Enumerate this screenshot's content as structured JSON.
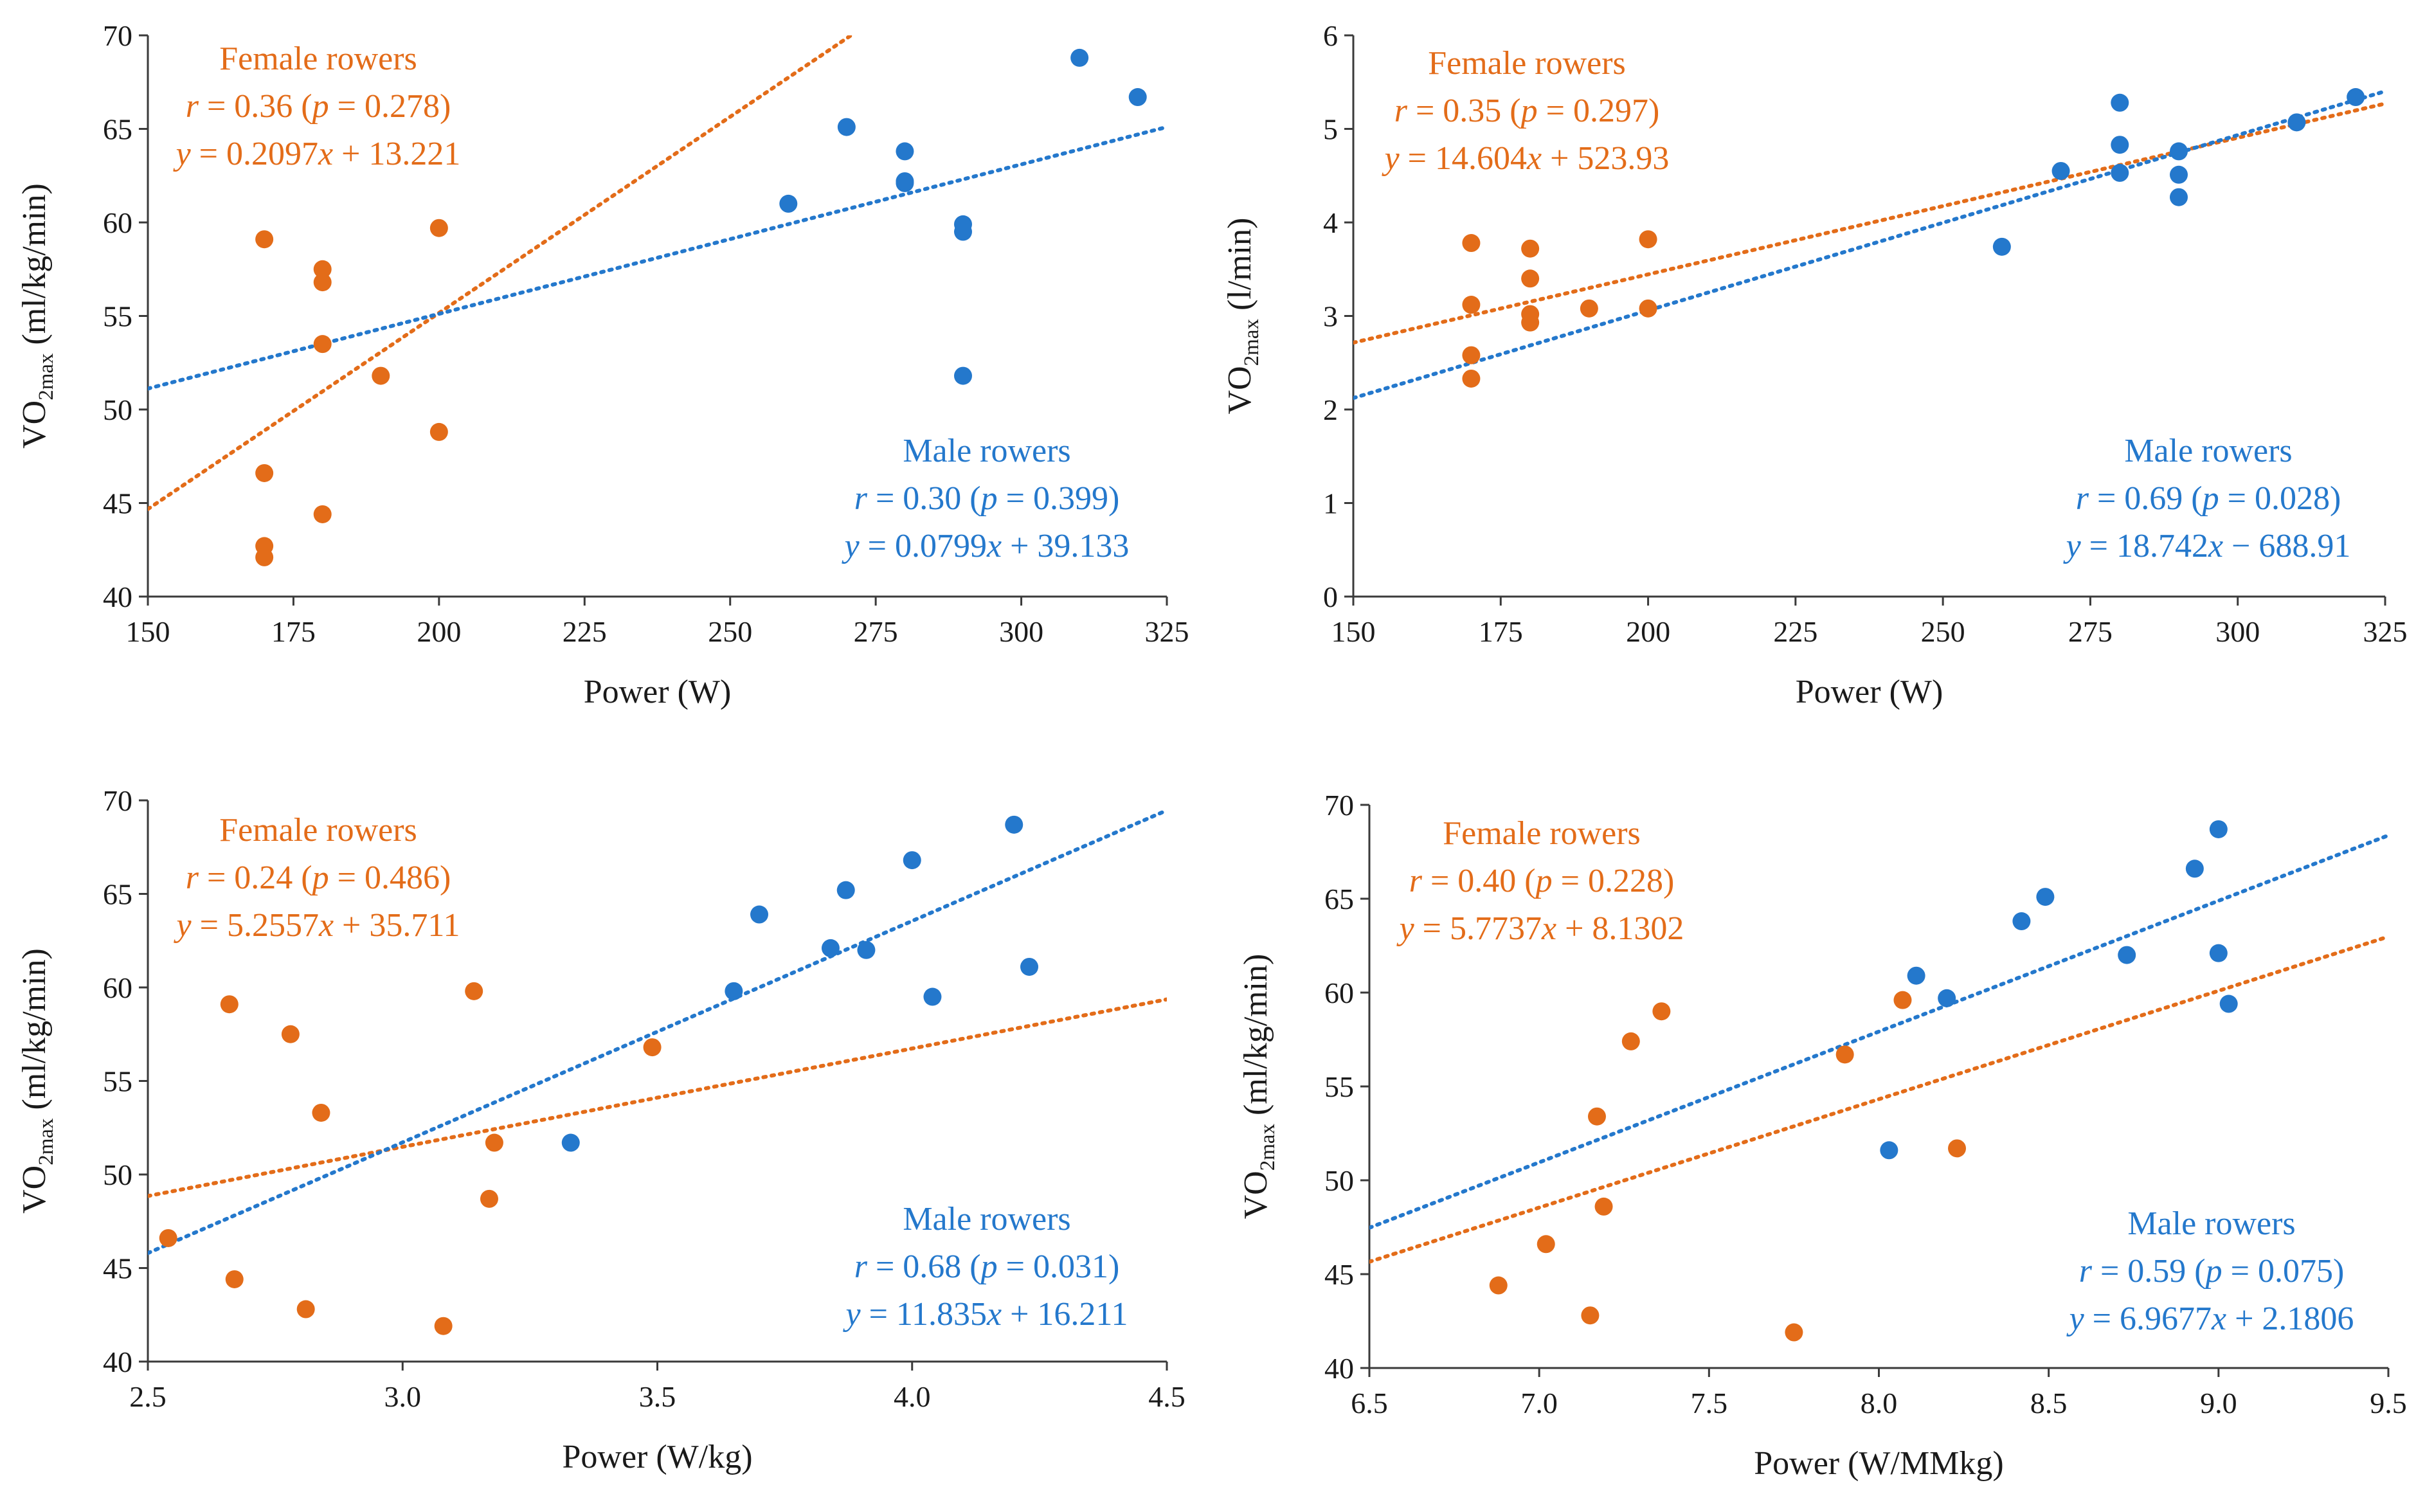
{
  "colors": {
    "female": "#E36C19",
    "male": "#2478CC",
    "axis": "#3a3a3a",
    "text": "#1a1a1a"
  },
  "chart_data": [
    {
      "type": "scatter",
      "xlabel": "Power (W)",
      "ylabel_main": "VO",
      "ylabel_sub": "2max",
      "ylabel_unit": " (ml/kg/min)",
      "xlim": [
        150,
        325
      ],
      "ylim": [
        40,
        70
      ],
      "xticks": [
        150,
        175,
        200,
        225,
        250,
        275,
        300,
        325
      ],
      "yticks": [
        40,
        45,
        50,
        55,
        60,
        65,
        70
      ],
      "xtick_labels": [
        "150",
        "175",
        "200",
        "225",
        "250",
        "275",
        "300",
        "325"
      ],
      "ytick_labels": [
        "40",
        "45",
        "50",
        "55",
        "60",
        "65",
        "70"
      ],
      "series": [
        {
          "name": "Female rowers",
          "color": "#E36C19",
          "points": [
            [
              170,
              59.1
            ],
            [
              170,
              46.6
            ],
            [
              170,
              42.7
            ],
            [
              170,
              42.1
            ],
            [
              180,
              57.5
            ],
            [
              180,
              56.8
            ],
            [
              180,
              53.5
            ],
            [
              180,
              44.4
            ],
            [
              190,
              51.8
            ],
            [
              200,
              59.7
            ],
            [
              200,
              48.8
            ]
          ],
          "fit": {
            "slope": 0.2097,
            "intercept": 13.221
          },
          "r_text": "0.36",
          "p_text": "0.278",
          "slope_text": "0.2097",
          "intercept_text": "13.221",
          "sign": "+"
        },
        {
          "name": "Male rowers",
          "color": "#2478CC",
          "points": [
            [
              260,
              61.0
            ],
            [
              270,
              65.1
            ],
            [
              280,
              63.8
            ],
            [
              280,
              62.1
            ],
            [
              280,
              62.2
            ],
            [
              290,
              59.9
            ],
            [
              290,
              59.5
            ],
            [
              290,
              51.8
            ],
            [
              310,
              68.8
            ],
            [
              320,
              66.7
            ]
          ],
          "fit": {
            "slope": 0.0799,
            "intercept": 39.133
          },
          "r_text": "0.30",
          "p_text": "0.399",
          "slope_text": "0.0799",
          "intercept_text": "39.133",
          "sign": "+"
        }
      ]
    },
    {
      "type": "scatter",
      "xlabel": "Power (W)",
      "ylabel_main": "VO",
      "ylabel_sub": "2max",
      "ylabel_unit": " (l/min)",
      "xlim": [
        150,
        325
      ],
      "ylim": [
        0,
        6
      ],
      "xticks": [
        150,
        175,
        200,
        225,
        250,
        275,
        300,
        325
      ],
      "yticks": [
        0,
        1,
        2,
        3,
        4,
        5,
        6
      ],
      "xtick_labels": [
        "150",
        "175",
        "200",
        "225",
        "250",
        "275",
        "300",
        "325"
      ],
      "ytick_labels": [
        "0",
        "1",
        "2",
        "3",
        "4",
        "5",
        "6"
      ],
      "fit_scale": 0.001,
      "series": [
        {
          "name": "Female rowers",
          "color": "#E36C19",
          "points": [
            [
              170,
              3.78
            ],
            [
              170,
              3.12
            ],
            [
              170,
              2.58
            ],
            [
              170,
              2.33
            ],
            [
              180,
              3.72
            ],
            [
              180,
              3.4
            ],
            [
              180,
              3.02
            ],
            [
              180,
              2.93
            ],
            [
              190,
              3.08
            ],
            [
              200,
              3.82
            ],
            [
              200,
              3.08
            ]
          ],
          "fit": {
            "slope": 14.604,
            "intercept": 523.93
          },
          "r_text": "0.35",
          "p_text": "0.297",
          "slope_text": "14.604",
          "intercept_text": "523.93",
          "sign": "+"
        },
        {
          "name": "Male rowers",
          "color": "#2478CC",
          "points": [
            [
              260,
              3.74
            ],
            [
              270,
              4.55
            ],
            [
              280,
              5.28
            ],
            [
              280,
              4.83
            ],
            [
              280,
              4.53
            ],
            [
              290,
              4.76
            ],
            [
              290,
              4.51
            ],
            [
              290,
              4.27
            ],
            [
              310,
              5.07
            ],
            [
              320,
              5.34
            ]
          ],
          "fit": {
            "slope": 18.742,
            "intercept": -688.91
          },
          "r_text": "0.69",
          "p_text": "0.028",
          "slope_text": "18.742",
          "intercept_text": "688.91",
          "sign": "−"
        }
      ]
    },
    {
      "type": "scatter",
      "xlabel": "Power (W/kg)",
      "ylabel_main": "VO",
      "ylabel_sub": "2max",
      "ylabel_unit": " (ml/kg/min)",
      "xlim": [
        2.5,
        4.5
      ],
      "ylim": [
        40,
        70
      ],
      "xticks": [
        2.5,
        3.0,
        3.5,
        4.0,
        4.5
      ],
      "yticks": [
        40,
        45,
        50,
        55,
        60,
        65,
        70
      ],
      "xtick_labels": [
        "2.5",
        "3.0",
        "3.5",
        "4.0",
        "4.5"
      ],
      "ytick_labels": [
        "40",
        "45",
        "50",
        "55",
        "60",
        "65",
        "70"
      ],
      "series": [
        {
          "name": "Female rowers",
          "color": "#E36C19",
          "points": [
            [
              2.54,
              46.6
            ],
            [
              2.66,
              59.1
            ],
            [
              2.67,
              44.4
            ],
            [
              2.78,
              57.5
            ],
            [
              2.81,
              42.8
            ],
            [
              2.84,
              53.3
            ],
            [
              3.08,
              41.9
            ],
            [
              3.14,
              59.8
            ],
            [
              3.17,
              48.7
            ],
            [
              3.18,
              51.7
            ],
            [
              3.49,
              56.8
            ]
          ],
          "fit": {
            "slope": 5.2557,
            "intercept": 35.711
          },
          "r_text": "0.24",
          "p_text": "0.486",
          "slope_text": "5.2557",
          "intercept_text": "35.711",
          "sign": "+"
        },
        {
          "name": "Male rowers",
          "color": "#2478CC",
          "points": [
            [
              3.33,
              51.7
            ],
            [
              3.65,
              59.8
            ],
            [
              3.7,
              63.9
            ],
            [
              3.84,
              62.1
            ],
            [
              3.87,
              65.2
            ],
            [
              3.91,
              62.0
            ],
            [
              4.0,
              66.8
            ],
            [
              4.04,
              59.5
            ],
            [
              4.2,
              68.7
            ],
            [
              4.23,
              61.1
            ]
          ],
          "fit": {
            "slope": 11.835,
            "intercept": 16.211
          },
          "r_text": "0.68",
          "p_text": "0.031",
          "slope_text": "11.835",
          "intercept_text": "16.211",
          "sign": "+"
        }
      ]
    },
    {
      "type": "scatter",
      "xlabel": "Power (W/MMkg)",
      "ylabel_main": "VO",
      "ylabel_sub": "2max",
      "ylabel_unit": " (ml/kg/min)",
      "xlim": [
        6.5,
        9.5
      ],
      "ylim": [
        40,
        70
      ],
      "xticks": [
        6.5,
        7.0,
        7.5,
        8.0,
        8.5,
        9.0,
        9.5
      ],
      "yticks": [
        40,
        45,
        50,
        55,
        60,
        65,
        70
      ],
      "xtick_labels": [
        "6.5",
        "7.0",
        "7.5",
        "8.0",
        "8.5",
        "9.0",
        "9.5"
      ],
      "ytick_labels": [
        "40",
        "45",
        "50",
        "55",
        "60",
        "65",
        "70"
      ],
      "series": [
        {
          "name": "Female rowers",
          "color": "#E36C19",
          "points": [
            [
              6.88,
              44.4
            ],
            [
              7.02,
              46.6
            ],
            [
              7.15,
              42.8
            ],
            [
              7.17,
              53.4
            ],
            [
              7.19,
              48.6
            ],
            [
              7.27,
              57.4
            ],
            [
              7.36,
              59.0
            ],
            [
              7.75,
              41.9
            ],
            [
              7.9,
              56.7
            ],
            [
              8.07,
              59.6
            ],
            [
              8.23,
              51.7
            ]
          ],
          "fit": {
            "slope": 5.7737,
            "intercept": 8.1302
          },
          "r_text": "0.40",
          "p_text": "0.228",
          "slope_text": "5.7737",
          "intercept_text": "8.1302",
          "sign": "+"
        },
        {
          "name": "Male rowers",
          "color": "#2478CC",
          "points": [
            [
              8.03,
              51.6
            ],
            [
              8.11,
              60.9
            ],
            [
              8.2,
              59.7
            ],
            [
              8.42,
              63.8
            ],
            [
              8.49,
              65.1
            ],
            [
              8.73,
              62.0
            ],
            [
              8.93,
              66.6
            ],
            [
              9.0,
              68.7
            ],
            [
              9.0,
              62.1
            ],
            [
              9.03,
              59.4
            ]
          ],
          "fit": {
            "slope": 6.9677,
            "intercept": 2.1806
          },
          "r_text": "0.59",
          "p_text": "0.075",
          "slope_text": "6.9677",
          "intercept_text": "2.1806",
          "sign": "+"
        }
      ]
    }
  ]
}
